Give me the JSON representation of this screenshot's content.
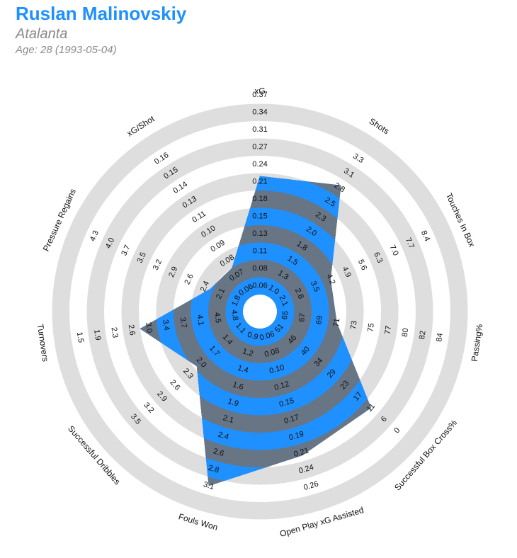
{
  "header": {
    "player": "Ruslan Malinovskiy",
    "team": "Atalanta",
    "age_line": "Age: 28 (1993-05-04)"
  },
  "colors": {
    "title": "#1e90ff",
    "ring_light": "#dedede",
    "shape_blue": "#1e90ff",
    "shape_gray": "#687585"
  },
  "chart_data": {
    "type": "radar",
    "axes": [
      {
        "label": "xG",
        "ticks": [
          "0.06",
          "0.08",
          "0.11",
          "0.13",
          "0.15",
          "0.18",
          "0.21",
          "0.24",
          "0.27",
          "0.31",
          "0.34",
          "0.37"
        ],
        "value": 0.22
      },
      {
        "label": "Shots",
        "ticks": [
          "1.0",
          "1.3",
          "1.5",
          "1.8",
          "2.0",
          "2.3",
          "2.5",
          "2.8",
          "3.1",
          "3.3"
        ],
        "value": 2.85
      },
      {
        "label": "Touches In Box",
        "ticks": [
          "2.1",
          "2.8",
          "3.5",
          "4.2",
          "4.9",
          "5.6",
          "6.3",
          "7.0",
          "7.7",
          "8.4"
        ],
        "value": 4.2
      },
      {
        "label": "Passing%",
        "ticks": [
          "65",
          "67",
          "69",
          "71",
          "73",
          "75",
          "77",
          "80",
          "82",
          "84"
        ],
        "value": 71
      },
      {
        "label": "Successful Box Cross%",
        "ticks": [
          "51",
          "46",
          "40",
          "34",
          "29",
          "23",
          "17",
          "11",
          "6",
          "0"
        ],
        "value": 11
      },
      {
        "label": "Open Play xG Assisted",
        "ticks": [
          "0.06",
          "0.08",
          "0.10",
          "0.12",
          "0.15",
          "0.17",
          "0.19",
          "0.21",
          "0.24",
          "0.26"
        ],
        "value": 0.215
      },
      {
        "label": "Fouls Won",
        "ticks": [
          "0.9",
          "1.2",
          "1.4",
          "1.6",
          "1.9",
          "2.1",
          "2.4",
          "2.6",
          "2.8",
          "3.1"
        ],
        "value": 3.1
      },
      {
        "label": "Successful Dribbles",
        "ticks": [
          "1.1",
          "1.4",
          "1.7",
          "2.0",
          "2.3",
          "2.6",
          "2.9",
          "3.2",
          "3.5"
        ],
        "value": 2.1
      },
      {
        "label": "Turnovers",
        "ticks": [
          "4.8",
          "4.5",
          "4.1",
          "3.7",
          "3.4",
          "3.0",
          "2.6",
          "2.3",
          "1.9",
          "1.5"
        ],
        "value": 2.8
      },
      {
        "label": "Pressure Regains",
        "ticks": [
          "1.8",
          "2.1",
          "2.4",
          "2.6",
          "2.9",
          "3.2",
          "3.5",
          "3.7",
          "4.0",
          "4.3"
        ],
        "value": 2.3
      },
      {
        "label": "xG/Shot",
        "ticks": [
          "0.06",
          "0.07",
          "0.08",
          "0.09",
          "0.10",
          "0.11",
          "0.13",
          "0.14",
          "0.15",
          "0.16"
        ],
        "value": 0.075
      }
    ]
  }
}
